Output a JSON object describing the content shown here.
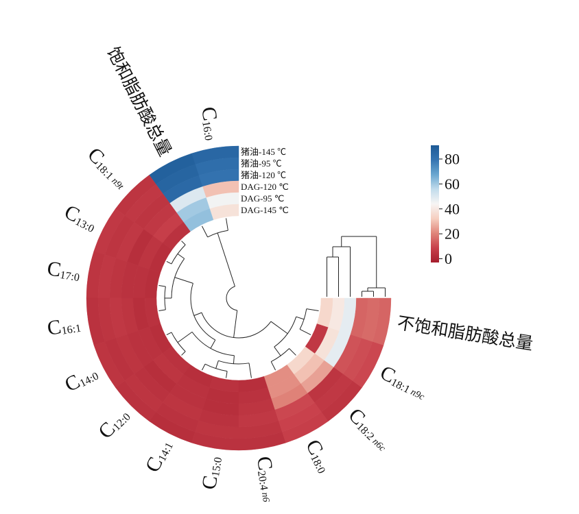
{
  "chart_data": {
    "type": "circular-heatmap",
    "categories": [
      "C16:0",
      "饱和脂肪酸总量",
      "C18:1 n9t",
      "C13:0",
      "C17:0",
      "C16:1",
      "C14:0",
      "C12:0",
      "C14:1",
      "C15:0",
      "C20:4 n6",
      "C18:0",
      "C18:2 n6c",
      "C18:1 n9c",
      "不饱和脂肪酸总量"
    ],
    "series": [
      {
        "name": "猪油-145 ℃",
        "values": [
          85,
          88,
          5,
          6,
          5,
          4,
          5,
          4,
          3,
          4,
          4,
          8,
          5,
          10,
          15
        ]
      },
      {
        "name": "猪油-95 ℃",
        "values": [
          82,
          86,
          6,
          5,
          6,
          5,
          4,
          5,
          4,
          5,
          5,
          9,
          6,
          11,
          16
        ]
      },
      {
        "name": "猪油-120 ℃",
        "values": [
          80,
          84,
          5,
          6,
          5,
          6,
          5,
          4,
          5,
          4,
          6,
          10,
          5,
          12,
          15
        ]
      },
      {
        "name": "DAG-120 ℃",
        "values": [
          30,
          50,
          6,
          3,
          4,
          5,
          4,
          3,
          4,
          3,
          5,
          20,
          25,
          48,
          48
        ]
      },
      {
        "name": "DAG-95 ℃",
        "values": [
          45,
          60,
          8,
          5,
          4,
          3,
          4,
          5,
          4,
          3,
          4,
          22,
          30,
          38,
          40
        ]
      },
      {
        "name": "DAG-145 ℃",
        "values": [
          38,
          62,
          4,
          3,
          3,
          4,
          3,
          4,
          3,
          4,
          3,
          22,
          35,
          6,
          35
        ]
      }
    ],
    "clim": [
      -3,
      91
    ],
    "cticks": [
      0,
      20,
      40,
      60,
      80
    ],
    "colors": [
      "#a51d2d",
      "#c8404b",
      "#e0857a",
      "#f6cfc0",
      "#f7f5f4",
      "#c2dcec",
      "#6aa7d0",
      "#3574b1",
      "#1d5a96"
    ]
  }
}
